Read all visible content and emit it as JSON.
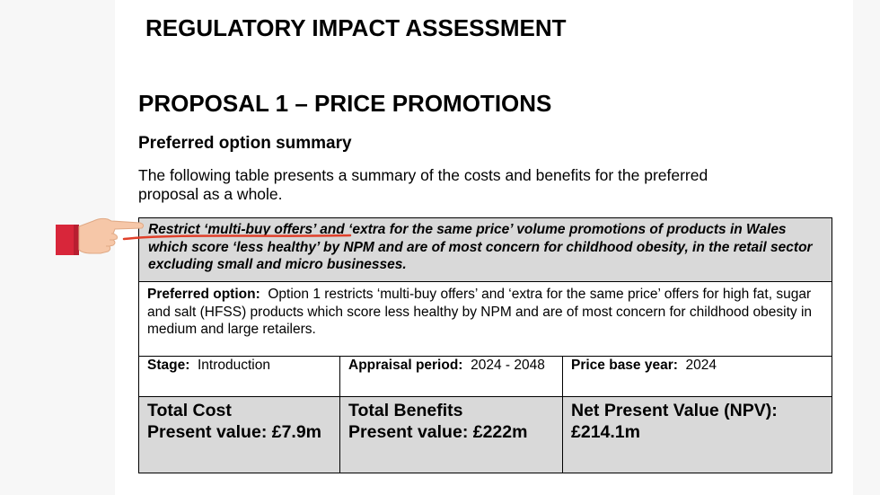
{
  "document": {
    "title": "REGULATORY IMPACT ASSESSMENT",
    "proposal_title": "PROPOSAL 1 – PRICE PROMOTIONS",
    "section_heading": "Preferred option summary",
    "intro": "The following table presents a summary of the costs and benefits for the preferred proposal as a whole."
  },
  "table": {
    "headline": "Restrict ‘multi-buy offers’ and ‘extra for the same price’ volume promotions of products in Wales which score ‘less healthy’ by NPM and are of most concern for childhood obesity, in the retail sector excluding small and micro businesses.",
    "preferred_label": "Preferred option:",
    "preferred_text": "Option 1 restricts ‘multi-buy offers’ and ‘extra for the same price’ offers for high fat, sugar and salt (HFSS) products which score less healthy by NPM and are of most concern for childhood obesity in medium and large retailers.",
    "stage_label": "Stage:",
    "stage_value": "Introduction",
    "appraisal_label": "Appraisal period:",
    "appraisal_value": "2024 - 2048",
    "price_base_label": "Price base year:",
    "price_base_value": "2024",
    "total_cost_label": "Total Cost",
    "total_cost_value": "Present value: £7.9m",
    "total_benefits_label": "Total Benefits",
    "total_benefits_value": "Present value:  £222m",
    "npv_label": "Net Present Value (NPV):",
    "npv_value": "£214.1m"
  },
  "overlay": {
    "pointer": "pointing-hand-icon",
    "sleeve_color": "#d8263a",
    "skin_color": "#f6c7a8",
    "underline_color": "#e0402a"
  }
}
